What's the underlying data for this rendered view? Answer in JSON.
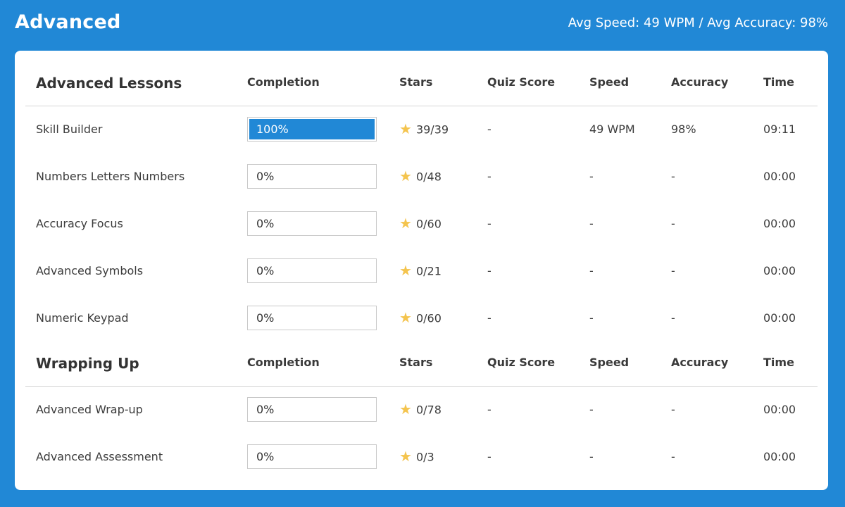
{
  "header": {
    "title": "Advanced",
    "summary": "Avg Speed: 49 WPM / Avg Accuracy: 98%"
  },
  "columns": {
    "completion": "Completion",
    "stars": "Stars",
    "quiz": "Quiz Score",
    "speed": "Speed",
    "accuracy": "Accuracy",
    "time": "Time"
  },
  "icons": {
    "star": "star-icon"
  },
  "colors": {
    "brand": "#2188d6",
    "star": "#f4c44e"
  },
  "sections": [
    {
      "title": "Advanced Lessons",
      "rows": [
        {
          "name": "Skill Builder",
          "completion": "100%",
          "progress": 1.0,
          "stars": "39/39",
          "quiz": "-",
          "speed": "49 WPM",
          "accuracy": "98%",
          "time": "09:11"
        },
        {
          "name": "Numbers Letters Numbers",
          "completion": "0%",
          "progress": 0.0,
          "stars": "0/48",
          "quiz": "-",
          "speed": "-",
          "accuracy": "-",
          "time": "00:00"
        },
        {
          "name": "Accuracy Focus",
          "completion": "0%",
          "progress": 0.0,
          "stars": "0/60",
          "quiz": "-",
          "speed": "-",
          "accuracy": "-",
          "time": "00:00"
        },
        {
          "name": "Advanced Symbols",
          "completion": "0%",
          "progress": 0.0,
          "stars": "0/21",
          "quiz": "-",
          "speed": "-",
          "accuracy": "-",
          "time": "00:00"
        },
        {
          "name": "Numeric Keypad",
          "completion": "0%",
          "progress": 0.0,
          "stars": "0/60",
          "quiz": "-",
          "speed": "-",
          "accuracy": "-",
          "time": "00:00"
        }
      ]
    },
    {
      "title": "Wrapping Up",
      "rows": [
        {
          "name": "Advanced Wrap-up",
          "completion": "0%",
          "progress": 0.0,
          "stars": "0/78",
          "quiz": "-",
          "speed": "-",
          "accuracy": "-",
          "time": "00:00"
        },
        {
          "name": "Advanced Assessment",
          "completion": "0%",
          "progress": 0.0,
          "stars": "0/3",
          "quiz": "-",
          "speed": "-",
          "accuracy": "-",
          "time": "00:00"
        }
      ]
    }
  ]
}
